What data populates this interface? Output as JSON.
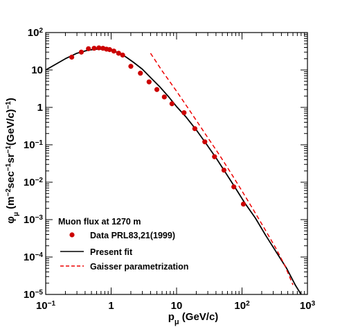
{
  "chart_data": {
    "type": "scatter",
    "title": "",
    "xscale": "log",
    "yscale": "log",
    "xlim": [
      0.1,
      1000
    ],
    "ylim": [
      1e-05,
      100
    ],
    "x_ticks": [
      {
        "value": 0.1,
        "base": "10",
        "exp": "−1"
      },
      {
        "value": 1,
        "base": "1",
        "exp": ""
      },
      {
        "value": 10,
        "base": "10",
        "exp": ""
      },
      {
        "value": 100,
        "base": "10",
        "exp": "2"
      },
      {
        "value": 1000,
        "base": "10",
        "exp": "3"
      }
    ],
    "y_ticks": [
      {
        "value": 100,
        "base": "10",
        "exp": "2"
      },
      {
        "value": 10,
        "base": "10",
        "exp": ""
      },
      {
        "value": 1,
        "base": "1",
        "exp": ""
      },
      {
        "value": 0.1,
        "base": "10",
        "exp": "−1"
      },
      {
        "value": 0.01,
        "base": "10",
        "exp": "−2"
      },
      {
        "value": 0.001,
        "base": "10",
        "exp": "−3"
      },
      {
        "value": 0.0001,
        "base": "10",
        "exp": "−4"
      },
      {
        "value": 1e-05,
        "base": "10",
        "exp": "−5"
      }
    ],
    "xlabel": {
      "main": "p",
      "sub": "μ",
      "rest": " (GeV/c)"
    },
    "ylabel": {
      "main": "φ",
      "sub": "μ",
      "p1": " (m",
      "e1": "−2",
      "p2": "sec",
      "e2": "−1",
      "p3": "sr",
      "e3": "−1",
      "p4": "(GeV/c)",
      "e4": "−1",
      "p5": ")"
    },
    "legend_title": "Muon flux at 1270 m",
    "legend_position": "bottom-left",
    "series": [
      {
        "name": "Data PRL83,21(1999)",
        "kind": "points",
        "color": "#cc0000",
        "x": [
          0.25,
          0.35,
          0.45,
          0.55,
          0.65,
          0.75,
          0.85,
          0.95,
          1.1,
          1.3,
          1.5,
          2.0,
          2.8,
          3.8,
          5.0,
          6.5,
          8.5,
          13,
          19,
          27,
          38,
          53,
          75,
          105
        ],
        "y": [
          22,
          30,
          37,
          38,
          39,
          38,
          36,
          35,
          32,
          28,
          25,
          12.5,
          8.2,
          4.8,
          3.0,
          1.9,
          1.25,
          0.72,
          0.27,
          0.12,
          0.048,
          0.021,
          0.0075,
          0.0026
        ]
      },
      {
        "name": "Present fit",
        "kind": "line",
        "color": "#000000",
        "x": [
          0.1,
          0.15,
          0.2,
          0.3,
          0.45,
          0.6,
          0.8,
          1.0,
          1.3,
          1.7,
          2.2,
          3.0,
          4.0,
          5.5,
          7.5,
          10,
          14,
          20,
          28,
          40,
          55,
          80,
          110,
          160,
          230,
          330,
          480,
          650,
          800
        ],
        "y": [
          10,
          15,
          20,
          28,
          34,
          36,
          36,
          33,
          29,
          22,
          16,
          10.5,
          6.3,
          3.6,
          1.95,
          1.05,
          0.55,
          0.25,
          0.11,
          0.045,
          0.019,
          0.0068,
          0.0028,
          0.0011,
          0.00038,
          0.00014,
          5e-05,
          1.8e-05,
          1e-05
        ]
      },
      {
        "name": "Gaisser parametrization",
        "kind": "dashed",
        "color": "#ee0000",
        "x": [
          4.0,
          6,
          10,
          15,
          22,
          30,
          45,
          70,
          100,
          150,
          220,
          330,
          450,
          600
        ],
        "y": [
          28,
          9.5,
          2.7,
          0.95,
          0.35,
          0.155,
          0.054,
          0.016,
          0.0058,
          0.0018,
          0.00058,
          0.00017,
          6e-05,
          1.8e-05
        ]
      }
    ]
  }
}
